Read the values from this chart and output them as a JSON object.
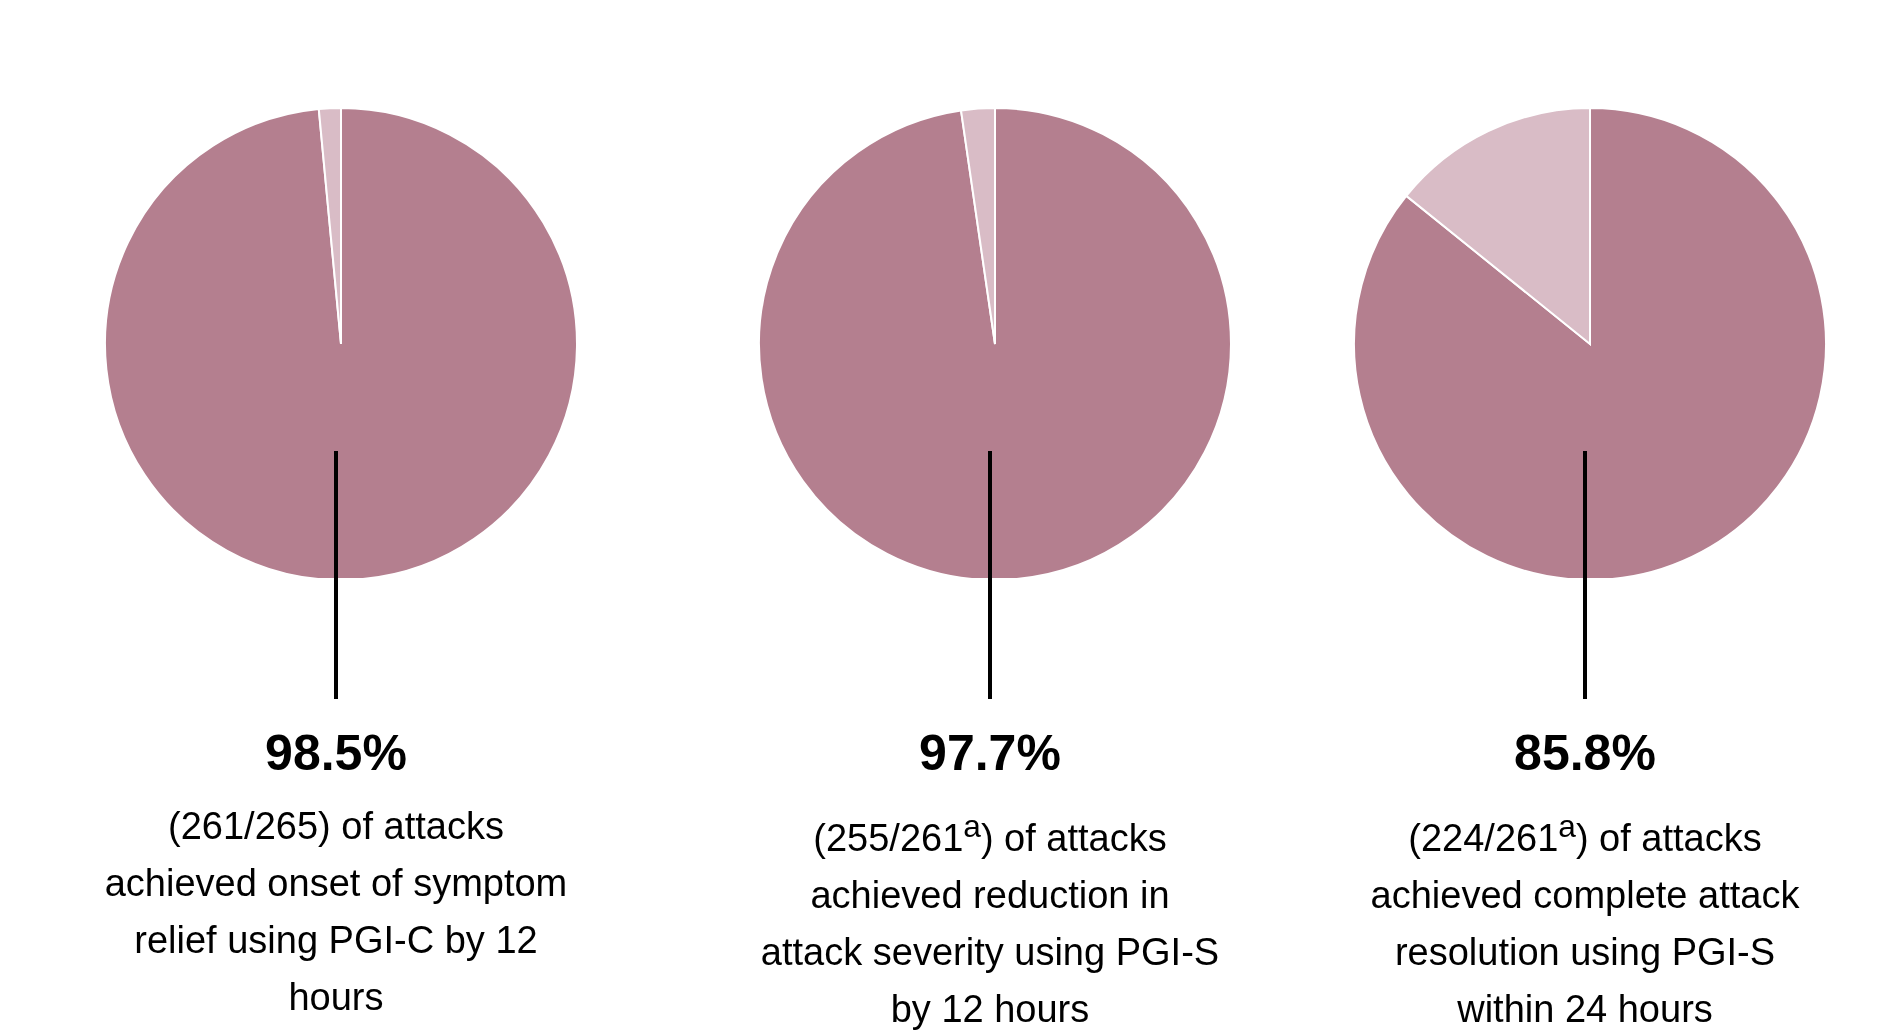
{
  "chart_data": [
    {
      "type": "pie",
      "categories": [
        null,
        null
      ],
      "values": [
        98.5,
        1.5
      ],
      "colors": [
        "#b47f8f",
        "#d9bcc6"
      ],
      "value_labels": [
        "98.5%",
        null
      ],
      "annotations": [
        "(261/265) of attacks achieved onset of symptom relief using PGI-C by 12 hours"
      ]
    },
    {
      "type": "pie",
      "categories": [
        null,
        null
      ],
      "values": [
        97.7,
        2.3
      ],
      "colors": [
        "#b47f8f",
        "#d9bcc6"
      ],
      "value_labels": [
        "97.7%",
        null
      ],
      "annotations": [
        "(255/261$^{a}$) of attacks achieved reduction in attack severity using PGI-S by 12 hours"
      ]
    },
    {
      "type": "pie",
      "categories": [
        null,
        null
      ],
      "values": [
        85.8,
        14.2
      ],
      "colors": [
        "#b47f8f",
        "#d9bcc6"
      ],
      "value_labels": [
        "85.8%",
        null
      ],
      "annotations": [
        "(224/261$^{a}$) of attacks achieved complete attack resolution using PGI-S within 24 hours"
      ]
    }
  ]
}
